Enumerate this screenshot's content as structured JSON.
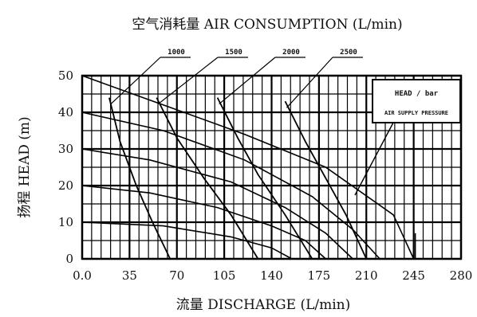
{
  "chart_data": {
    "type": "line",
    "title": "空气消耗量 AIR CONSUMPTION (L/min)",
    "xlabel": "流量 DISCHARGE (L/min)",
    "ylabel": "扬程 HEAD (m)",
    "xlim": [
      0,
      280
    ],
    "ylim": [
      0,
      50
    ],
    "x_ticks": [
      "0.0",
      "35",
      "70",
      "105",
      "140",
      "175",
      "210",
      "245",
      "280"
    ],
    "y_ticks": [
      "0",
      "10",
      "20",
      "30",
      "40",
      "50"
    ],
    "grid": true,
    "legend": {
      "box_title": "HEAD / bar",
      "box_subtitle": "AIR SUPPLY PRESSURE",
      "placement": "top-right"
    },
    "air_consumption_labels": [
      "1000",
      "1500",
      "2000",
      "2500"
    ],
    "pressure_curves": [
      {
        "points": [
          [
            0,
            50
          ],
          [
            60,
            42
          ],
          [
            120,
            34
          ],
          [
            180,
            25
          ],
          [
            230,
            12
          ],
          [
            245,
            0
          ]
        ]
      },
      {
        "points": [
          [
            0,
            40
          ],
          [
            60,
            35
          ],
          [
            120,
            27
          ],
          [
            170,
            17
          ],
          [
            200,
            8
          ],
          [
            220,
            0
          ]
        ]
      },
      {
        "points": [
          [
            0,
            30
          ],
          [
            50,
            27
          ],
          [
            110,
            21
          ],
          [
            150,
            14
          ],
          [
            180,
            7
          ],
          [
            200,
            0
          ]
        ]
      },
      {
        "points": [
          [
            0,
            20
          ],
          [
            50,
            18
          ],
          [
            100,
            14
          ],
          [
            140,
            9
          ],
          [
            165,
            5
          ],
          [
            180,
            0
          ]
        ]
      },
      {
        "points": [
          [
            0,
            10
          ],
          [
            60,
            9
          ],
          [
            110,
            6
          ],
          [
            140,
            3
          ],
          [
            155,
            0
          ]
        ]
      }
    ],
    "air_consumption_curves": [
      {
        "label": "1000",
        "points": [
          [
            20,
            44
          ],
          [
            28,
            32
          ],
          [
            40,
            20
          ],
          [
            52,
            10
          ],
          [
            65,
            0
          ]
        ]
      },
      {
        "label": "1500",
        "points": [
          [
            55,
            44
          ],
          [
            70,
            33
          ],
          [
            90,
            22
          ],
          [
            110,
            12
          ],
          [
            130,
            0
          ]
        ]
      },
      {
        "label": "2000",
        "points": [
          [
            100,
            44
          ],
          [
            115,
            33
          ],
          [
            130,
            23
          ],
          [
            150,
            12
          ],
          [
            170,
            0
          ]
        ]
      },
      {
        "label": "2500",
        "points": [
          [
            150,
            43
          ],
          [
            165,
            32
          ],
          [
            180,
            22
          ],
          [
            195,
            12
          ],
          [
            210,
            0
          ]
        ]
      }
    ]
  }
}
